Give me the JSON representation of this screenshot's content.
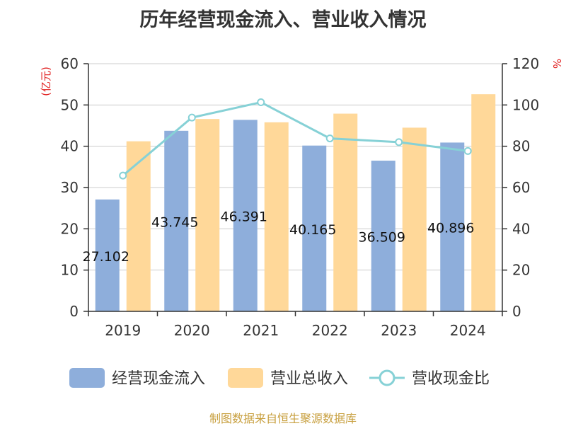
{
  "chart_data": {
    "type": "bar",
    "title": "历年经营现金流入、营业收入情况",
    "categories": [
      "2019",
      "2020",
      "2021",
      "2022",
      "2023",
      "2024"
    ],
    "series": [
      {
        "name": "经营现金流入",
        "type": "bar",
        "axis": "left",
        "color": "#8eaedb",
        "values": [
          27.102,
          43.745,
          46.391,
          40.165,
          36.509,
          40.896
        ],
        "labels": [
          "27.102",
          "43.745",
          "46.391",
          "40.165",
          "36.509",
          "40.896"
        ]
      },
      {
        "name": "营业总收入",
        "type": "bar",
        "axis": "left",
        "color": "#ffd899",
        "values": [
          41.2,
          46.6,
          45.8,
          47.9,
          44.5,
          52.6
        ]
      },
      {
        "name": "营收现金比",
        "type": "line",
        "axis": "right",
        "color": "#86d1d6",
        "values": [
          65.8,
          93.9,
          101.3,
          83.8,
          82.0,
          77.7
        ]
      }
    ],
    "y_left": {
      "unit": "(亿元)",
      "min": 0,
      "max": 60,
      "ticks": [
        0,
        10,
        20,
        30,
        40,
        50,
        60
      ]
    },
    "y_right": {
      "unit": "%",
      "min": 0,
      "max": 120,
      "ticks": [
        0,
        20,
        40,
        60,
        80,
        100,
        120
      ]
    },
    "grid": true,
    "legend_position": "bottom"
  },
  "source": "制图数据来自恒生聚源数据库"
}
